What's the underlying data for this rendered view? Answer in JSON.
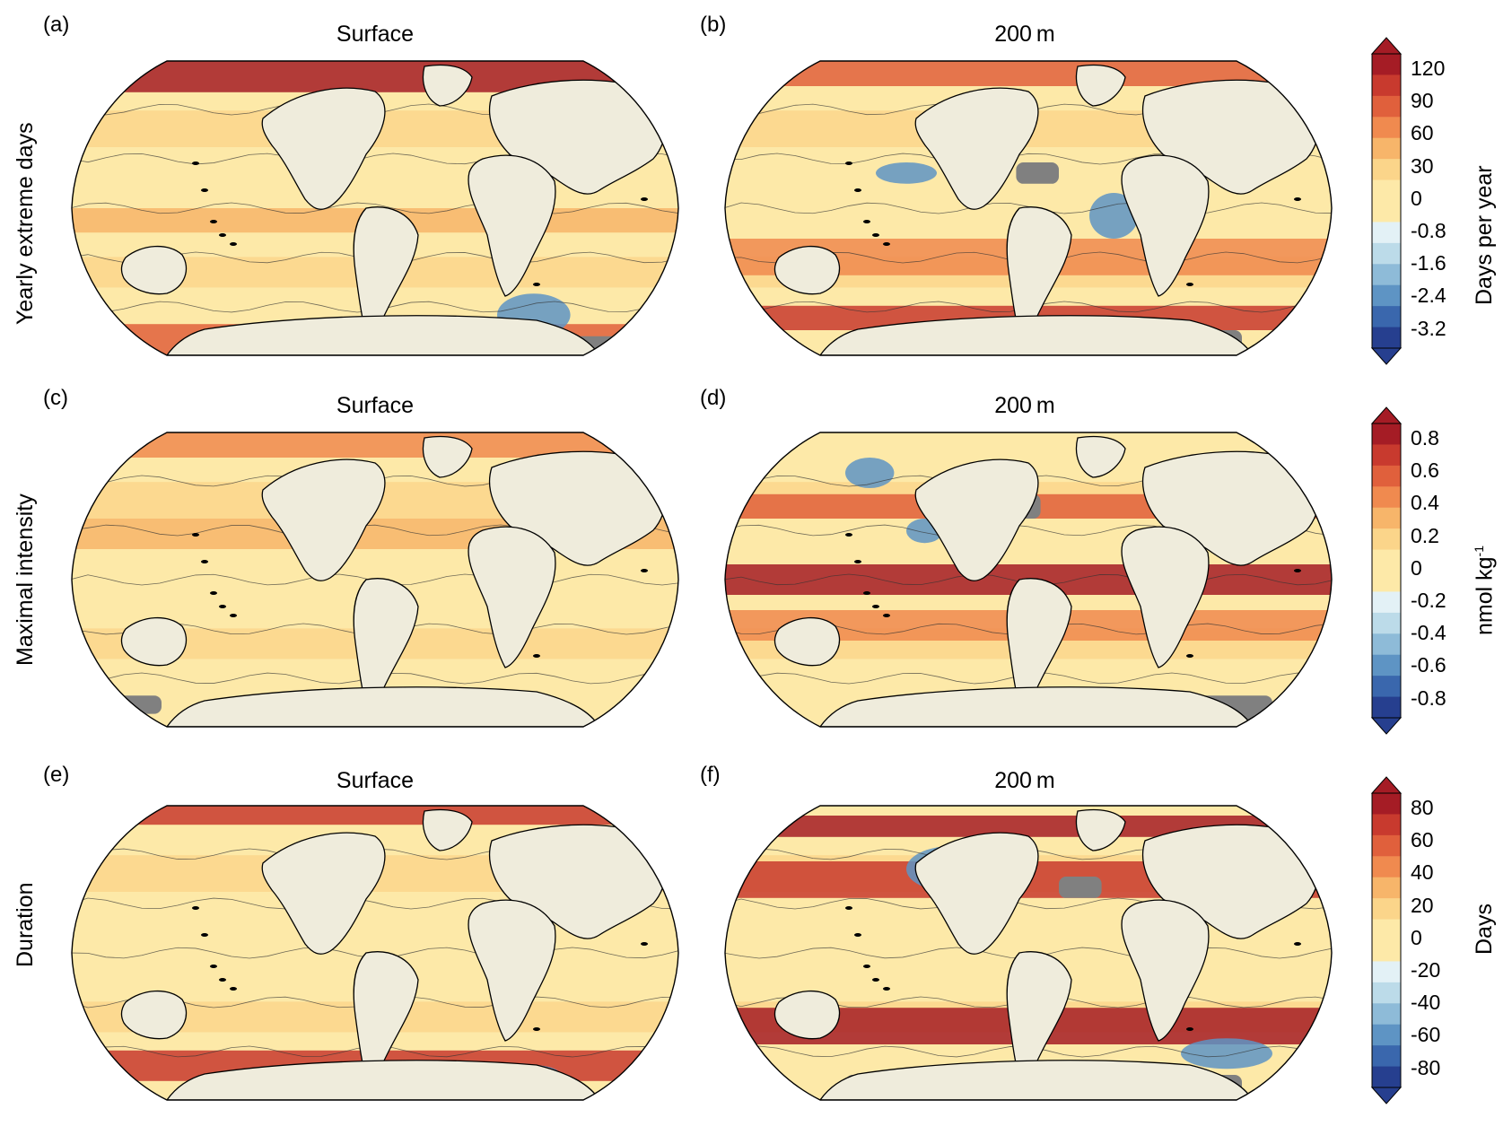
{
  "rows": [
    {
      "row_label": "Yearly extreme days",
      "panels": [
        {
          "letter": "(a)",
          "title": "Surface",
          "style": "surface_days"
        },
        {
          "letter": "(b)",
          "title": "200 m",
          "style": "deep_days"
        }
      ],
      "colorbar": {
        "unit": "Days per year",
        "ticks": [
          "120",
          "90",
          "60",
          "30",
          "0",
          "-0.8",
          "-1.6",
          "-2.4",
          "-3.2"
        ]
      }
    },
    {
      "row_label": "Maximal intensity",
      "panels": [
        {
          "letter": "(c)",
          "title": "Surface",
          "style": "surface_int"
        },
        {
          "letter": "(d)",
          "title": "200 m",
          "style": "deep_int"
        }
      ],
      "colorbar": {
        "unit_main": "nmol kg",
        "unit_sup": "-1",
        "ticks": [
          "0.8",
          "0.6",
          "0.4",
          "0.2",
          "0",
          "-0.2",
          "-0.4",
          "-0.6",
          "-0.8"
        ]
      }
    },
    {
      "row_label": "Duration",
      "panels": [
        {
          "letter": "(e)",
          "title": "Surface",
          "style": "surface_dur"
        },
        {
          "letter": "(f)",
          "title": "200 m",
          "style": "deep_dur"
        }
      ],
      "colorbar": {
        "unit": "Days",
        "ticks": [
          "80",
          "60",
          "40",
          "20",
          "0",
          "-20",
          "-40",
          "-60",
          "-80"
        ]
      }
    }
  ],
  "colors": {
    "ocean_neutral": "#fde9a8",
    "land": "#efecdc",
    "no_data": "#808080",
    "warm_scale": [
      "#fbd58a",
      "#f7b56a",
      "#f08a4f",
      "#e0603c",
      "#c83a2e",
      "#a51c25"
    ],
    "cool_scale": [
      "#e3f1f6",
      "#bcdbe9",
      "#8ebbd8",
      "#5e94c4",
      "#3a67ad",
      "#263f8f"
    ]
  }
}
